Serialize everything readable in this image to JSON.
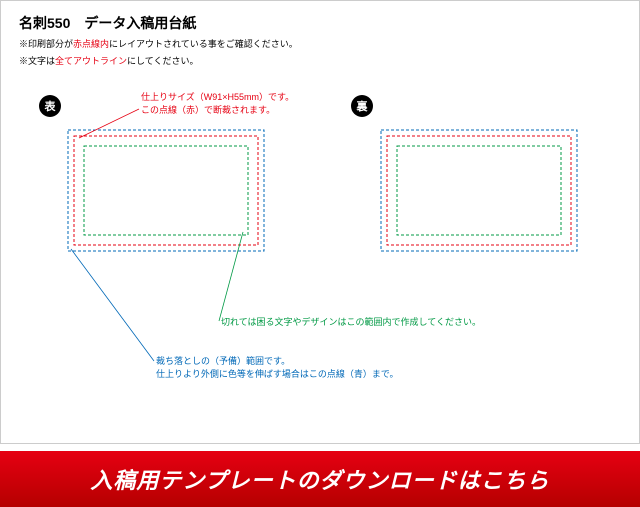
{
  "header": {
    "title": "名刺550　データ入稿用台紙",
    "note1_a": "※印刷部分が",
    "note1_b": "赤点線内",
    "note1_c": "にレイアウトされている事をご確認ください。",
    "note2_a": "※文字は",
    "note2_b": "全てアウトライン",
    "note2_c": "にしてください。"
  },
  "labels": {
    "front": "表",
    "back": "裏"
  },
  "annotations": {
    "red_line1": "仕上りサイズ（W91×H55mm）です。",
    "red_line2": "この点線（赤）で断裁されます。",
    "green": "切れては困る文字やデザインはこの範囲内で作成してください。",
    "blue_line1": "裁ち落としの（予備）範囲です。",
    "blue_line2": "仕上りより外側に色等を伸ばす場合はこの点線（青）まで。"
  },
  "banner": {
    "text": "入稿用テンプレートのダウンロードはこちら"
  },
  "card_spec": {
    "outer_w": 220,
    "outer_h": 145,
    "pad_blue": 12,
    "pad_red": 18,
    "pad_green": 28,
    "crop_len": 20,
    "crop_off": 6,
    "color_blue": "#0068b7",
    "color_red": "#e60012",
    "color_green": "#009944",
    "color_crop": "#666"
  }
}
